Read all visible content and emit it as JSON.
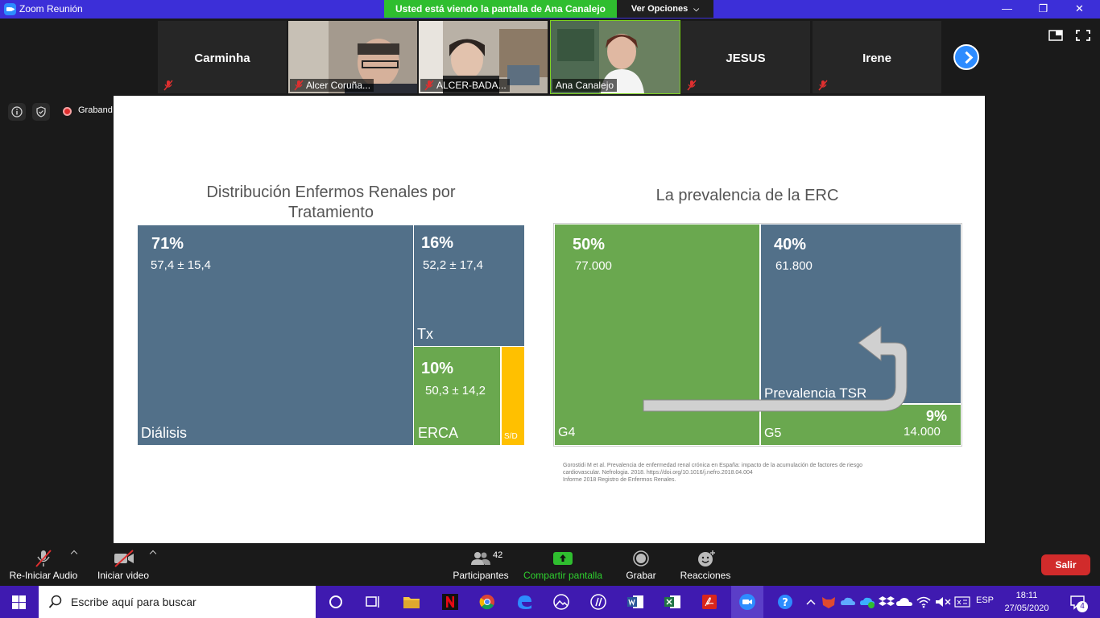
{
  "window": {
    "title": "Zoom Reunión",
    "share_banner": "Usted está viendo la pantalla de Ana Canalejo",
    "view_options": "Ver Opciones"
  },
  "participants_strip": [
    {
      "name": "Carminha",
      "video": false
    },
    {
      "name": "Alcer Coruña...",
      "video": true
    },
    {
      "name": "ALCER-BADA...",
      "video": true
    },
    {
      "name": "Ana Canalejo",
      "video": true,
      "active": true
    },
    {
      "name": "JESUS",
      "video": false
    },
    {
      "name": "Irene",
      "video": false
    }
  ],
  "meeting_info": {
    "recording_label": "Grabando"
  },
  "slide": {
    "left_title_line1": "Distribución Enfermos Renales por",
    "left_title_line2": "Tratamiento",
    "right_title": "La prevalencia de la ERC",
    "left_chart": {
      "dialisis": {
        "pct": "71%",
        "sub": "57,4 ± 15,4",
        "label": "Diálisis"
      },
      "tx": {
        "pct": "16%",
        "sub": "52,2 ± 17,4",
        "label": "Tx"
      },
      "erca": {
        "pct": "10%",
        "sub": "50,3 ± 14,2",
        "label": "ERCA"
      },
      "sd": {
        "label": "S/D"
      }
    },
    "right_chart": {
      "g4": {
        "pct": "50%",
        "sub": "77.000",
        "label": "G4"
      },
      "tsr": {
        "pct": "40%",
        "sub": "61.800",
        "label": "Prevalencia TSR"
      },
      "g5": {
        "pct": "9%",
        "sub": "14.000",
        "label": "G5"
      }
    },
    "references": {
      "line1": "Gorostidi M et al. Prevalencia de enfermedad renal crónica en España: impacto de la acumulación de factores de riesgo",
      "line2": "cardiovascular. Nefrologia. 2018. https://doi.org/10.1016/j.nefro.2018.04.004",
      "line3": "Informe 2018 Registro de Enfermos Renales."
    },
    "colors": {
      "blue": "#527089",
      "green": "#6aa84f",
      "yellow": "#ffc000"
    }
  },
  "toolbar": {
    "audio_label": "Re-Iniciar Audio",
    "video_label": "Iniciar video",
    "participants_label": "Participantes",
    "participants_count": "42",
    "share_label": "Compartir pantalla",
    "record_label": "Grabar",
    "reactions_label": "Reacciones",
    "leave_label": "Salir"
  },
  "taskbar": {
    "search_placeholder": "Escribe aquí para buscar",
    "lang": "ESP",
    "time": "18:11",
    "date": "27/05/2020",
    "notifications": "4"
  }
}
